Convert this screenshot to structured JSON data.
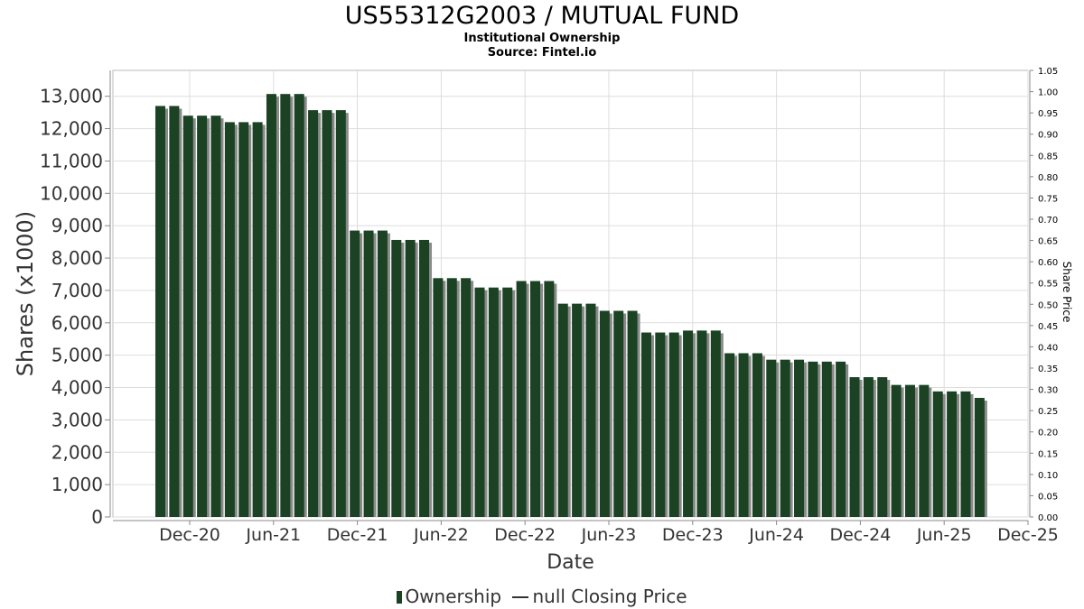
{
  "header": {
    "title": "US55312G2003 / MUTUAL FUND",
    "subtitle": "Institutional Ownership",
    "source": "Source: Fintel.io"
  },
  "legend": {
    "ownership_label": "Ownership",
    "price_label": "null Closing Price"
  },
  "colors": {
    "bar": "#1a4223",
    "bar_shadow": "#8a8a8a",
    "grid": "#dddddd",
    "axis": "#888888"
  },
  "chart_data": {
    "type": "bar",
    "xlabel": "Date",
    "ylabel": "Shares (x1000)",
    "y2label": "Share Price",
    "ylim": [
      0,
      13800
    ],
    "y_ticks": [
      0,
      1000,
      2000,
      3000,
      4000,
      5000,
      6000,
      7000,
      8000,
      9000,
      10000,
      11000,
      12000,
      13000
    ],
    "y_tick_labels": [
      "0",
      "1,000",
      "2,000",
      "3,000",
      "4,000",
      "5,000",
      "6,000",
      "7,000",
      "8,000",
      "9,000",
      "10,000",
      "11,000",
      "12,000",
      "13,000"
    ],
    "y2lim": [
      0,
      1.05
    ],
    "y2_ticks": [
      "0.00",
      "0.05",
      "0.10",
      "0.15",
      "0.20",
      "0.25",
      "0.30",
      "0.35",
      "0.40",
      "0.45",
      "0.50",
      "0.55",
      "0.60",
      "0.65",
      "0.70",
      "0.75",
      "0.80",
      "0.85",
      "0.90",
      "0.95",
      "1.00",
      "1.05"
    ],
    "x_tick_labels": [
      "Dec-20",
      "Jun-21",
      "Dec-21",
      "Jun-22",
      "Dec-22",
      "Jun-23",
      "Dec-23",
      "Jun-24",
      "Dec-24",
      "Jun-25",
      "Dec-25"
    ],
    "grid": true,
    "legend_position": "bottom-center",
    "series": [
      {
        "name": "Ownership",
        "values": [
          12700,
          12700,
          12400,
          12400,
          12400,
          12200,
          12200,
          12200,
          13070,
          13070,
          13070,
          12570,
          12570,
          12570,
          8850,
          8850,
          8850,
          8560,
          8560,
          8560,
          7380,
          7380,
          7380,
          7090,
          7090,
          7090,
          7290,
          7290,
          7290,
          6590,
          6590,
          6590,
          6370,
          6370,
          6370,
          5700,
          5700,
          5700,
          5760,
          5760,
          5760,
          5060,
          5060,
          5060,
          4860,
          4860,
          4860,
          4800,
          4800,
          4800,
          4320,
          4320,
          4320,
          4080,
          4080,
          4080,
          3880,
          3880,
          3880,
          3680
        ]
      }
    ]
  }
}
